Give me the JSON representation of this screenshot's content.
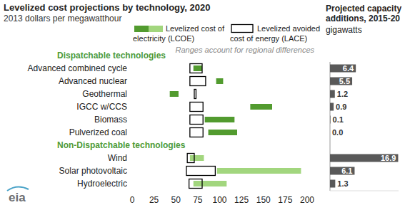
{
  "chart_data": [
    {
      "type": "range_bar",
      "title": "Levelized cost projections by technology, 2020",
      "subtitle": "2013 dollars per megawatthour",
      "orientation": "horizontal",
      "annotation": "Ranges account for regional differences",
      "logo": "eia",
      "groups": [
        {
          "name": "Dispatchable technologies",
          "categories": [
            "Advanced combined cycle",
            "Advanced nuclear",
            "Geothermal",
            "IGCC w/CCS",
            "Biomass",
            "Pulverized coal"
          ]
        },
        {
          "name": "Non-Dispatchable technologies",
          "categories": [
            "Wind",
            "Solar photovoltaic",
            "Hydroelectric"
          ]
        }
      ],
      "series": [
        {
          "name": "Levelized cost of electricity (LCOE)",
          "colors": [
            "#529b2f",
            "#529b2f",
            "#529b2f",
            "#529b2f",
            "#529b2f",
            "#529b2f",
            "#a2d67e",
            "#a2d67e",
            "#a2d67e"
          ],
          "values": [
            [
              70,
              80
            ],
            [
              96,
              104
            ],
            [
              43,
              53
            ],
            [
              135,
              160
            ],
            [
              83,
              117
            ],
            [
              87,
              120
            ],
            [
              66,
              82
            ],
            [
              97,
              193
            ],
            [
              70,
              108
            ]
          ]
        },
        {
          "name": "Levelized avoided cost of energy (LACE)",
          "color": "#000000",
          "values": [
            [
              66,
              80
            ],
            [
              66,
              84
            ],
            [
              71,
              73
            ],
            [
              66,
              81
            ],
            [
              66,
              81
            ],
            [
              66,
              81
            ],
            [
              63,
              71
            ],
            [
              62,
              95
            ],
            [
              65,
              80
            ]
          ]
        }
      ],
      "xlim": [
        0,
        200
      ],
      "xticks": [
        0,
        25,
        50,
        75,
        100,
        125,
        150,
        175,
        200
      ],
      "grid": false,
      "legend": "top"
    },
    {
      "type": "bar",
      "orientation": "horizontal",
      "title": "Projected capacity additions, 2015-20",
      "subtitle": "gigawatts",
      "values": [
        6.4,
        5.5,
        1.2,
        0.9,
        0.1,
        0.0,
        16.9,
        6.1,
        1.3
      ],
      "value_labels": [
        "6.4",
        "5.5",
        "1.2",
        "0.9",
        "0.1",
        "0.0",
        "16.9",
        "6.1",
        "1.3"
      ],
      "color": "#595959",
      "xlim": [
        0,
        17
      ],
      "data_labels": true,
      "tick_labels": false
    }
  ]
}
